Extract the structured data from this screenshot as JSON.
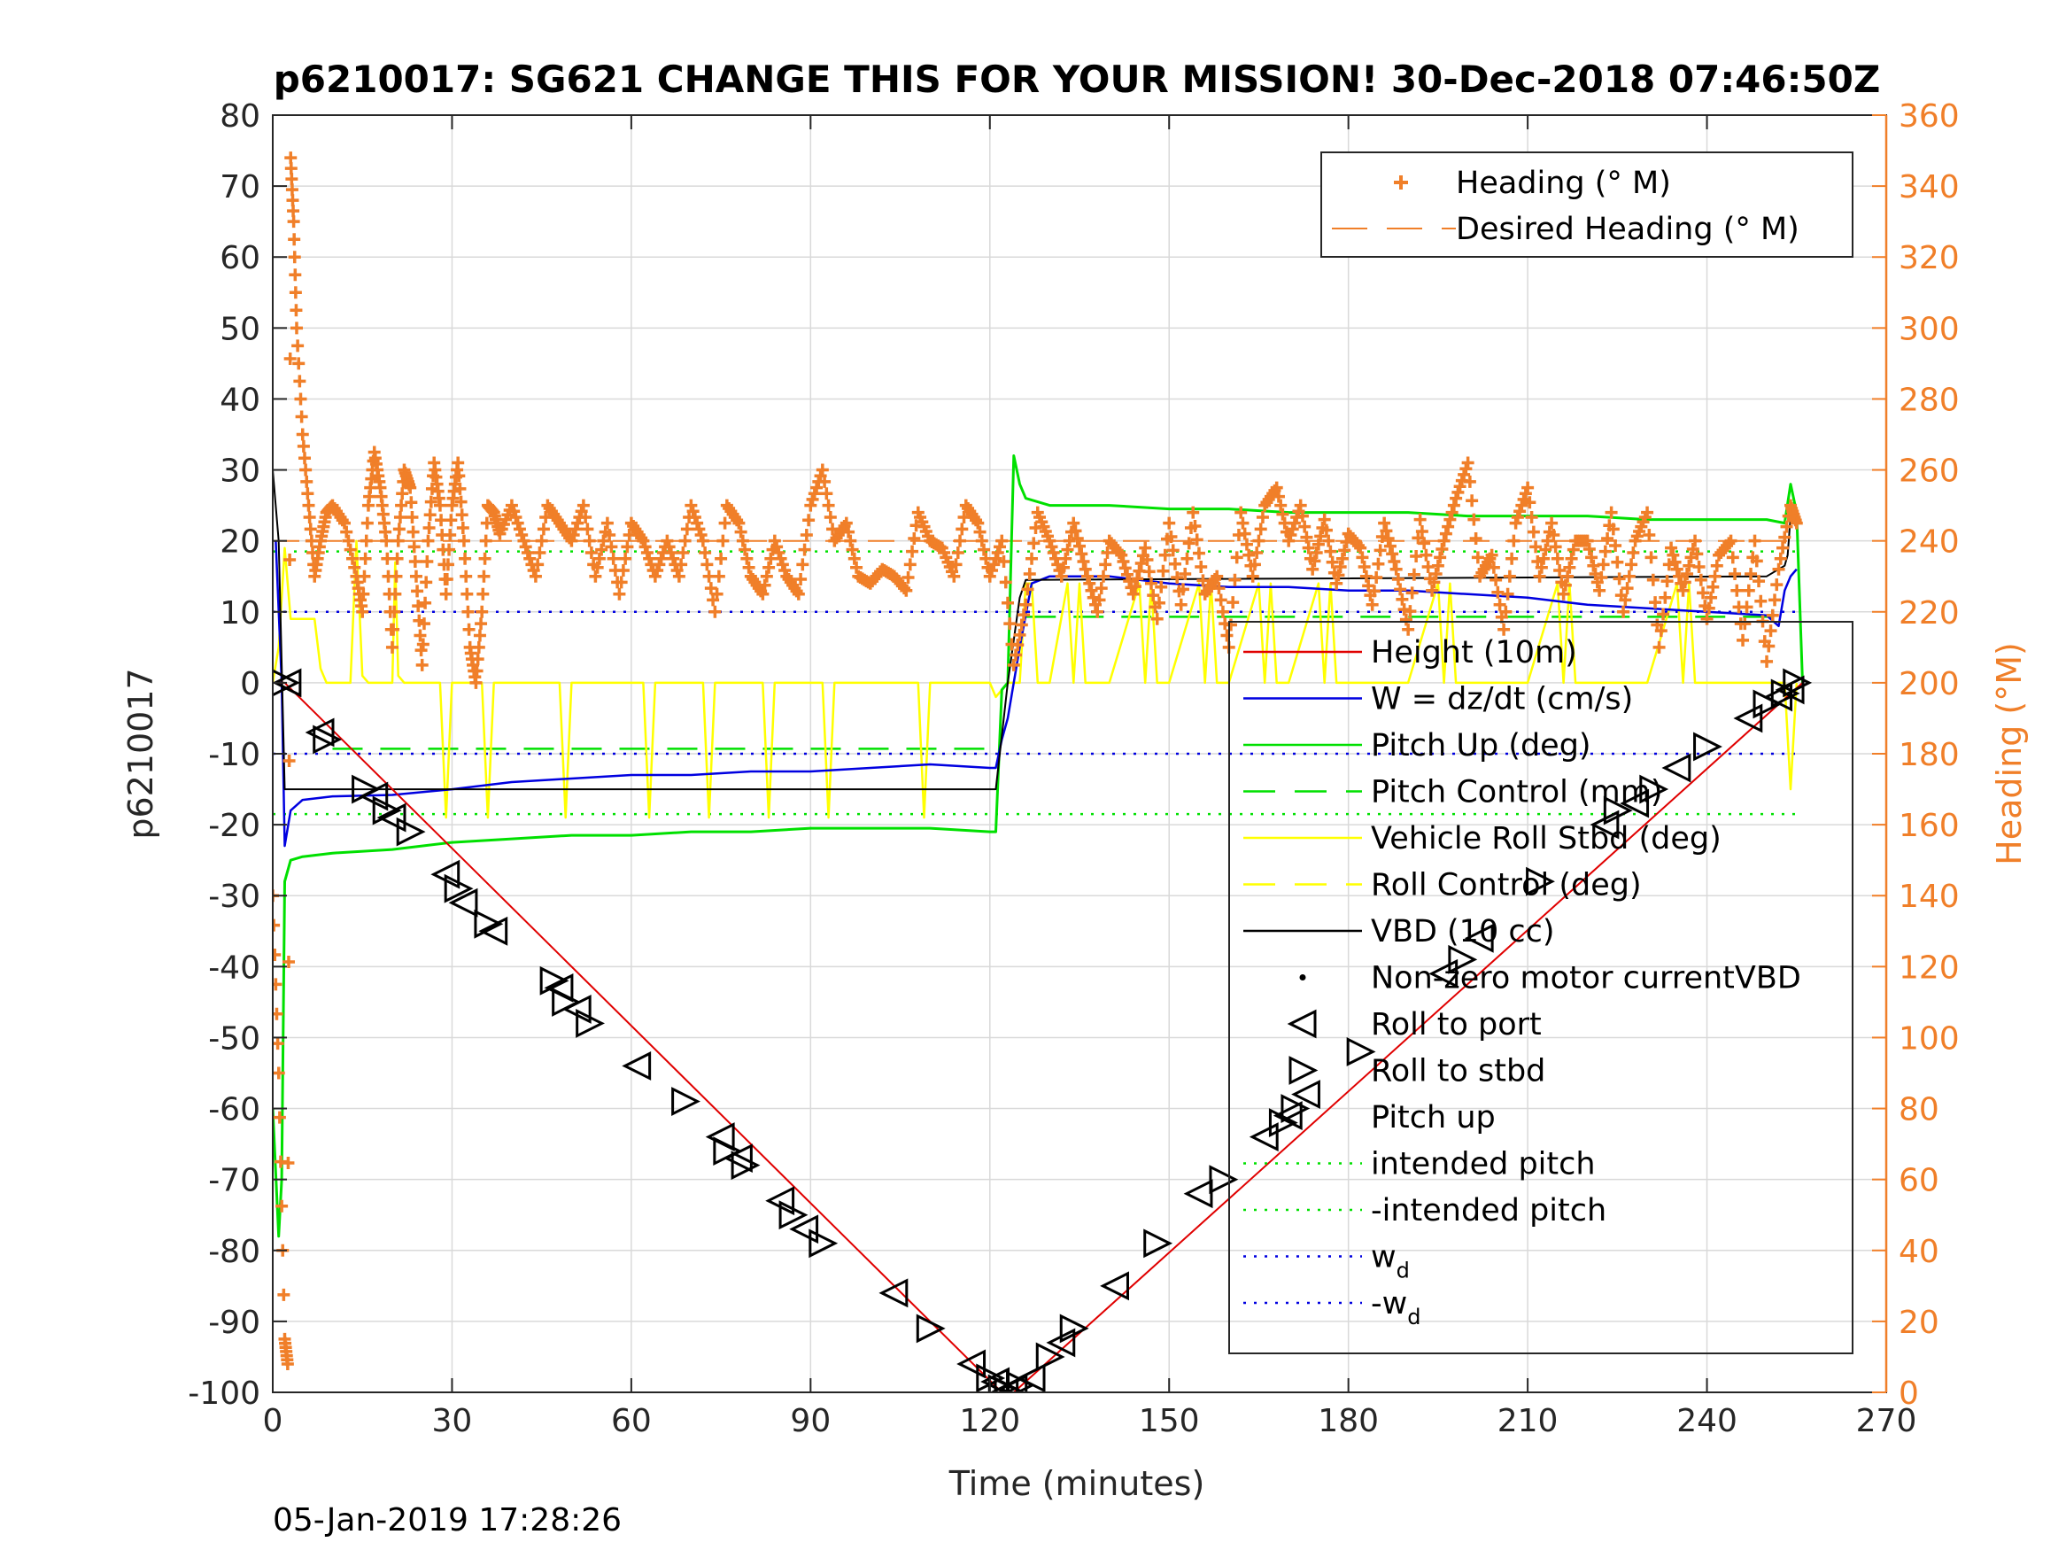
{
  "chart_data": {
    "type": "line",
    "title": "p6210017: SG621 CHANGE THIS FOR YOUR MISSION! 30-Dec-2018 07:46:50Z",
    "xlabel": "Time (minutes)",
    "ylabel": "p6210017",
    "y2label": "Heading (°M)",
    "xlim": [
      0,
      270
    ],
    "ylim": [
      -100,
      80
    ],
    "y2lim": [
      0,
      360
    ],
    "x_ticks": [
      "0",
      "30",
      "60",
      "90",
      "120",
      "150",
      "180",
      "210",
      "240",
      "270"
    ],
    "y_ticks": [
      "-100",
      "-90",
      "-80",
      "-70",
      "-60",
      "-50",
      "-40",
      "-30",
      "-20",
      "-10",
      "0",
      "10",
      "20",
      "30",
      "40",
      "50",
      "60",
      "70",
      "80"
    ],
    "y2_ticks": [
      "0",
      "20",
      "40",
      "60",
      "80",
      "100",
      "120",
      "140",
      "160",
      "180",
      "200",
      "220",
      "240",
      "260",
      "280",
      "300",
      "320",
      "340",
      "360"
    ],
    "grid": true,
    "timestamp": "05-Jan-2019 17:28:26",
    "colors": {
      "height": "#e00000",
      "w": "#0000e0",
      "pitch": "#00e000",
      "roll": "#ffff00",
      "vbd": "#000000",
      "heading": "#f07f29",
      "grid": "#d9d9d9"
    },
    "legend_right": {
      "placement": "top-right",
      "entries": [
        {
          "label": "Heading (° M)",
          "style": "plus"
        },
        {
          "label": "Desired Heading (° M)",
          "style": "dash"
        }
      ]
    },
    "legend_left": {
      "placement": "lower-right",
      "entries": [
        {
          "label": "Height (10m)",
          "style": "solid-red"
        },
        {
          "label": "W = dz/dt (cm/s)",
          "style": "solid-blue"
        },
        {
          "label": "Pitch Up (deg)",
          "style": "solid-green"
        },
        {
          "label": "Pitch Control (mm)",
          "style": "dash-green"
        },
        {
          "label": "Vehicle Roll Stbd (deg)",
          "style": "solid-yellow"
        },
        {
          "label": "Roll Control (deg)",
          "style": "dash-yellow"
        },
        {
          "label": "VBD (10 cc)",
          "style": "solid-black"
        },
        {
          "label": "Non-zero motor currentVBD",
          "style": "dot"
        },
        {
          "label": "Roll to port",
          "style": "tri-left"
        },
        {
          "label": "Roll to stbd",
          "style": "tri-right"
        },
        {
          "label": "Pitch up",
          "style": "none"
        },
        {
          "label": "intended pitch",
          "style": "dot-green"
        },
        {
          "label": "-intended pitch",
          "style": "dot-green"
        },
        {
          "label": "w",
          "sub": "d",
          "style": "dot-blue"
        },
        {
          "label": "-w",
          "sub": "d",
          "style": "dot-blue"
        }
      ]
    },
    "series": [
      {
        "name": "Height (10m)",
        "axis": "left",
        "color": "#e00000",
        "x": [
          0,
          2,
          122,
          124,
          256
        ],
        "y": [
          0,
          0,
          -100,
          -100,
          0
        ]
      },
      {
        "name": "W = dz/dt (cm/s)",
        "axis": "left",
        "color": "#0000e0",
        "x": [
          0.5,
          1.5,
          2,
          3,
          5,
          10,
          20,
          30,
          40,
          50,
          60,
          70,
          80,
          90,
          100,
          110,
          120,
          121,
          122,
          123,
          125,
          127,
          130,
          140,
          150,
          160,
          170,
          180,
          190,
          200,
          210,
          220,
          230,
          240,
          250,
          252,
          253,
          254,
          255
        ],
        "y": [
          20,
          0,
          -23,
          -18,
          -16.5,
          -16,
          -15.8,
          -15,
          -14,
          -13.5,
          -13,
          -13,
          -12.5,
          -12.5,
          -12,
          -11.5,
          -12,
          -12,
          -8,
          -5,
          5,
          14,
          15,
          15,
          14,
          13.5,
          13.5,
          13,
          13,
          12.5,
          12,
          11,
          10.5,
          10,
          9.5,
          8,
          13,
          15,
          16
        ]
      },
      {
        "name": "Pitch Up (deg)",
        "axis": "left",
        "color": "#00e000",
        "x": [
          0,
          1,
          1.5,
          2,
          3,
          5,
          10,
          20,
          30,
          40,
          50,
          60,
          70,
          80,
          90,
          100,
          110,
          120,
          121,
          122,
          123,
          124,
          125,
          126,
          130,
          140,
          150,
          160,
          170,
          180,
          190,
          200,
          210,
          220,
          230,
          240,
          250,
          253,
          254,
          255,
          256
        ],
        "y": [
          -60,
          -78,
          -70,
          -28,
          -25,
          -24.5,
          -24,
          -23.5,
          -22.5,
          -22,
          -21.5,
          -21.5,
          -21,
          -21,
          -20.5,
          -20.5,
          -20.5,
          -21,
          -21,
          -1,
          0,
          32,
          28,
          26,
          25,
          25,
          24.5,
          24.5,
          24,
          24,
          24,
          23.5,
          23.5,
          23.5,
          23,
          23,
          23,
          22.5,
          28,
          24,
          0
        ]
      },
      {
        "name": "VBD (10 cc)",
        "axis": "left",
        "color": "#000000",
        "x": [
          0,
          1,
          2,
          120,
          121,
          123,
          125,
          126,
          250,
          251,
          252,
          253,
          253.5,
          254,
          255
        ],
        "y": [
          30,
          20,
          -15,
          -15,
          -15,
          0,
          12,
          14.5,
          15,
          15.5,
          16,
          16.5,
          18,
          23.5,
          24
        ]
      },
      {
        "name": "Vehicle Roll Stbd (deg)",
        "axis": "left",
        "color": "#ffff00",
        "x": [
          0,
          1,
          2,
          3,
          4,
          5,
          7,
          8,
          9,
          10,
          10.3,
          13,
          14,
          15,
          16,
          18,
          20,
          20.5,
          21,
          22,
          25,
          28,
          29,
          30,
          32,
          35,
          36,
          37,
          38,
          40,
          45,
          48,
          49,
          50,
          55,
          60,
          62,
          63,
          64,
          65,
          70,
          72,
          73,
          74,
          75,
          80,
          82,
          83,
          84,
          85,
          90,
          92,
          93,
          94,
          95,
          100,
          105,
          108,
          109,
          110,
          115,
          120,
          121,
          123,
          125,
          126,
          127,
          128,
          130,
          133,
          134,
          135,
          136,
          140,
          145,
          146,
          147,
          148,
          150,
          155,
          156,
          157,
          158,
          160,
          165,
          166,
          167,
          168,
          170,
          175,
          176,
          177,
          178,
          180,
          190,
          195,
          196,
          197,
          198,
          200,
          210,
          215,
          216,
          217,
          218,
          220,
          230,
          235,
          236,
          237,
          238,
          240,
          250,
          253,
          254,
          255
        ],
        "y": [
          0,
          5,
          19,
          9,
          9,
          9,
          9,
          2,
          0,
          0,
          0,
          0,
          20,
          1,
          0,
          0,
          0,
          17,
          1,
          0,
          0,
          0,
          -19,
          0,
          0,
          0,
          -19,
          0,
          0,
          0,
          0,
          0,
          -19,
          0,
          0,
          0,
          0,
          -19,
          0,
          0,
          0,
          0,
          -19,
          0,
          0,
          0,
          0,
          -19,
          0,
          0,
          0,
          0,
          -19,
          0,
          0,
          0,
          0,
          0,
          -19,
          0,
          0,
          0,
          -2,
          0,
          0,
          14,
          14,
          0,
          0,
          14,
          0,
          14,
          0,
          0,
          14,
          0,
          14,
          0,
          0,
          14,
          0,
          14,
          0,
          0,
          14,
          0,
          14,
          0,
          0,
          14,
          0,
          14,
          0,
          0,
          0,
          14,
          0,
          14,
          0,
          0,
          0,
          14,
          0,
          14,
          0,
          0,
          0,
          14,
          0,
          14,
          0,
          0,
          0,
          0,
          -15,
          0
        ]
      },
      {
        "name": "Heading (° M)",
        "axis": "right",
        "color": "#f07f29",
        "x": [
          0,
          1,
          2,
          2.5,
          3,
          3.5,
          4,
          5,
          6,
          7,
          8,
          9,
          10,
          12,
          14,
          15,
          16,
          17,
          18,
          19,
          20,
          21,
          22,
          23,
          24,
          25,
          26,
          27,
          28,
          29,
          30,
          31,
          32,
          33,
          34,
          35,
          36,
          37,
          38,
          40,
          42,
          44,
          46,
          48,
          50,
          52,
          54,
          56,
          58,
          60,
          62,
          64,
          66,
          68,
          70,
          72,
          74,
          76,
          78,
          80,
          82,
          84,
          86,
          88,
          90,
          92,
          94,
          96,
          98,
          100,
          102,
          104,
          106,
          108,
          110,
          112,
          114,
          116,
          118,
          120,
          122,
          124,
          126,
          128,
          130,
          132,
          134,
          136,
          138,
          140,
          142,
          144,
          146,
          148,
          150,
          152,
          154,
          156,
          158,
          160,
          162,
          164,
          166,
          168,
          170,
          172,
          174,
          176,
          178,
          180,
          182,
          184,
          186,
          188,
          190,
          192,
          194,
          196,
          198,
          200,
          202,
          204,
          206,
          208,
          210,
          212,
          214,
          216,
          218,
          220,
          222,
          224,
          226,
          228,
          230,
          232,
          234,
          236,
          238,
          240,
          242,
          244,
          246,
          248,
          250,
          252,
          254,
          255
        ],
        "y": [
          140,
          90,
          15,
          8,
          348,
          330,
          300,
          270,
          250,
          230,
          240,
          248,
          250,
          245,
          230,
          220,
          250,
          265,
          255,
          240,
          210,
          240,
          260,
          255,
          230,
          205,
          240,
          262,
          250,
          225,
          250,
          262,
          240,
          210,
          200,
          220,
          250,
          248,
          242,
          250,
          240,
          230,
          250,
          245,
          240,
          250,
          230,
          245,
          225,
          245,
          240,
          230,
          240,
          230,
          250,
          240,
          220,
          250,
          245,
          230,
          225,
          240,
          230,
          225,
          250,
          260,
          240,
          245,
          230,
          228,
          232,
          230,
          226,
          248,
          240,
          238,
          230,
          250,
          245,
          230,
          240,
          205,
          222,
          248,
          240,
          230,
          245,
          232,
          220,
          240,
          236,
          225,
          238,
          218,
          245,
          222,
          248,
          225,
          230,
          210,
          248,
          230,
          250,
          255,
          240,
          250,
          232,
          246,
          228,
          242,
          238,
          222,
          245,
          232,
          215,
          246,
          226,
          240,
          252,
          262,
          230,
          236,
          215,
          245,
          255,
          230,
          245,
          225,
          240,
          240,
          226,
          248,
          220,
          240,
          248,
          210,
          238,
          226,
          240,
          218,
          236,
          240,
          212,
          240,
          206,
          232,
          250,
          245
        ]
      },
      {
        "name": "Desired Heading (° M)",
        "axis": "right",
        "color": "#f07f29",
        "x": [
          0,
          256
        ],
        "y": [
          240,
          240
        ]
      }
    ],
    "reference_lines": [
      {
        "name": "intended pitch",
        "y": 18.5,
        "color": "#00e000"
      },
      {
        "name": "-intended pitch",
        "y": -18.5,
        "color": "#00e000"
      },
      {
        "name": "w_d",
        "y": 10,
        "color": "#0000e0"
      },
      {
        "name": "-w_d",
        "y": -10,
        "color": "#0000e0"
      },
      {
        "name": "Pitch Control (mm) down",
        "y": -9.3,
        "color": "#00e000",
        "x": [
          10,
          120
        ]
      },
      {
        "name": "Pitch Control (mm) up",
        "y": 9.3,
        "color": "#00e000",
        "x": [
          126,
          252
        ]
      }
    ],
    "roll_markers": {
      "x": [
        2,
        2.5,
        8,
        9,
        15.5,
        17,
        19,
        20,
        23,
        29,
        31,
        32,
        36,
        37,
        47,
        48,
        49,
        51,
        53,
        61,
        69,
        75,
        76,
        78,
        79,
        85,
        87,
        89,
        92,
        104,
        110,
        117,
        120,
        121,
        122,
        122.5,
        123,
        124,
        125,
        127,
        130,
        132,
        134,
        141,
        148,
        155,
        159,
        166,
        169,
        170,
        171,
        173,
        182,
        196,
        199,
        202,
        212,
        223,
        225,
        228,
        231,
        235,
        240,
        247,
        250,
        252,
        253,
        254,
        255
      ],
      "y": [
        0,
        0,
        -7,
        -8,
        -15,
        -16,
        -18,
        -19,
        -21,
        -27,
        -29,
        -31,
        -34,
        -35,
        -42,
        -43,
        -45,
        -46,
        -48,
        -54,
        -59,
        -64,
        -66,
        -67,
        -68,
        -73,
        -75,
        -77,
        -79,
        -86,
        -91,
        -96,
        -98,
        -98.5,
        -99.5,
        -100,
        -99.8,
        -99.5,
        -99,
        -98,
        -95,
        -93,
        -91,
        -85,
        -79,
        -72,
        -70,
        -64,
        -62,
        -61,
        -60,
        -58,
        -52,
        -41,
        -39,
        -36,
        -28,
        -20,
        -18,
        -17,
        -15,
        -12,
        -9,
        -5,
        -3,
        -2,
        -1.5,
        -1,
        0
      ],
      "type": [
        "R",
        "L",
        "L",
        "R",
        "R",
        "L",
        "R",
        "L",
        "R",
        "L",
        "R",
        "L",
        "R",
        "L",
        "R",
        "L",
        "R",
        "L",
        "R",
        "L",
        "R",
        "L",
        "R",
        "L",
        "R",
        "L",
        "R",
        "L",
        "R",
        "L",
        "R",
        "L",
        "R",
        "L",
        "R",
        "L",
        "R",
        "L",
        "R",
        "L",
        "R",
        "L",
        "R",
        "L",
        "R",
        "L",
        "R",
        "L",
        "R",
        "L",
        "R",
        "L",
        "R",
        "L",
        "R",
        "L",
        "R",
        "L",
        "R",
        "L",
        "R",
        "L",
        "R",
        "L",
        "R",
        "L",
        "R",
        "L",
        "R"
      ]
    }
  }
}
